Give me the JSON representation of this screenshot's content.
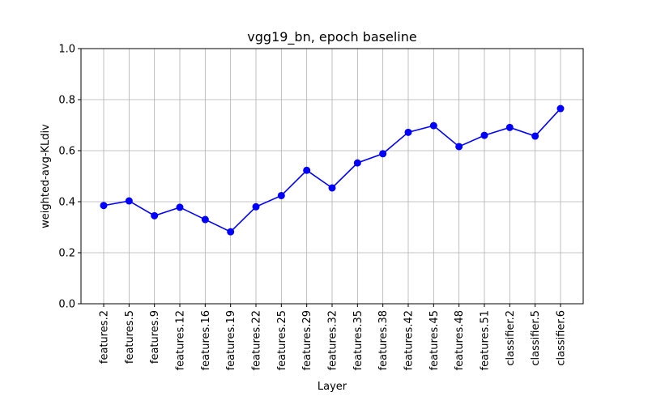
{
  "chart_data": {
    "type": "line",
    "title": "vgg19_bn, epoch baseline",
    "xlabel": "Layer",
    "ylabel": "weighted-avg-KLdiv",
    "ylim": [
      0.0,
      1.0
    ],
    "yticks": [
      "0.0",
      "0.2",
      "0.4",
      "0.6",
      "0.8",
      "1.0"
    ],
    "grid": true,
    "categories": [
      "features.2",
      "features.5",
      "features.9",
      "features.12",
      "features.16",
      "features.19",
      "features.22",
      "features.25",
      "features.29",
      "features.32",
      "features.35",
      "features.38",
      "features.42",
      "features.45",
      "features.48",
      "features.51",
      "classifier.2",
      "classifier.5",
      "classifier.6"
    ],
    "series": [
      {
        "values": [
          0.385,
          0.403,
          0.345,
          0.378,
          0.33,
          0.282,
          0.38,
          0.424,
          0.523,
          0.454,
          0.552,
          0.588,
          0.672,
          0.698,
          0.616,
          0.66,
          0.691,
          0.657,
          0.765
        ],
        "color": "#0000ff"
      }
    ]
  }
}
